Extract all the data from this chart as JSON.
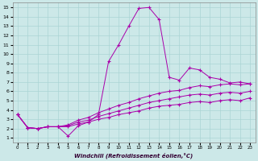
{
  "xlabel": "Windchill (Refroidissement éolien,°C)",
  "bg_color": "#cce8e8",
  "grid_color": "#aad4d4",
  "line_color": "#aa00aa",
  "xlim": [
    0,
    23
  ],
  "ylim": [
    1,
    15
  ],
  "xticks": [
    0,
    1,
    2,
    3,
    4,
    5,
    6,
    7,
    8,
    9,
    10,
    11,
    12,
    13,
    14,
    15,
    16,
    17,
    18,
    19,
    20,
    21,
    22,
    23
  ],
  "yticks": [
    1,
    2,
    3,
    4,
    5,
    6,
    7,
    8,
    9,
    10,
    11,
    12,
    13,
    14,
    15
  ],
  "series": [
    [
      3.5,
      2.1,
      2.0,
      2.2,
      2.2,
      1.2,
      2.3,
      2.7,
      3.5,
      9.2,
      11.0,
      13.0,
      14.9,
      15.0,
      13.7,
      7.5,
      7.2,
      8.5,
      8.3,
      7.5,
      7.3,
      6.9,
      7.0,
      6.8
    ],
    [
      3.5,
      2.1,
      2.0,
      2.2,
      2.2,
      2.4,
      2.9,
      3.2,
      3.7,
      4.1,
      4.5,
      4.8,
      5.2,
      5.5,
      5.8,
      6.0,
      6.1,
      6.4,
      6.6,
      6.5,
      6.7,
      6.8,
      6.7,
      6.8
    ],
    [
      3.5,
      2.1,
      2.0,
      2.2,
      2.2,
      2.3,
      2.7,
      2.9,
      3.3,
      3.6,
      3.9,
      4.2,
      4.5,
      4.8,
      5.0,
      5.2,
      5.4,
      5.6,
      5.7,
      5.6,
      5.8,
      5.9,
      5.8,
      6.0
    ],
    [
      3.5,
      2.1,
      2.0,
      2.2,
      2.2,
      2.2,
      2.5,
      2.7,
      3.0,
      3.2,
      3.5,
      3.7,
      3.9,
      4.2,
      4.4,
      4.5,
      4.6,
      4.8,
      4.9,
      4.8,
      5.0,
      5.1,
      5.0,
      5.3
    ]
  ]
}
